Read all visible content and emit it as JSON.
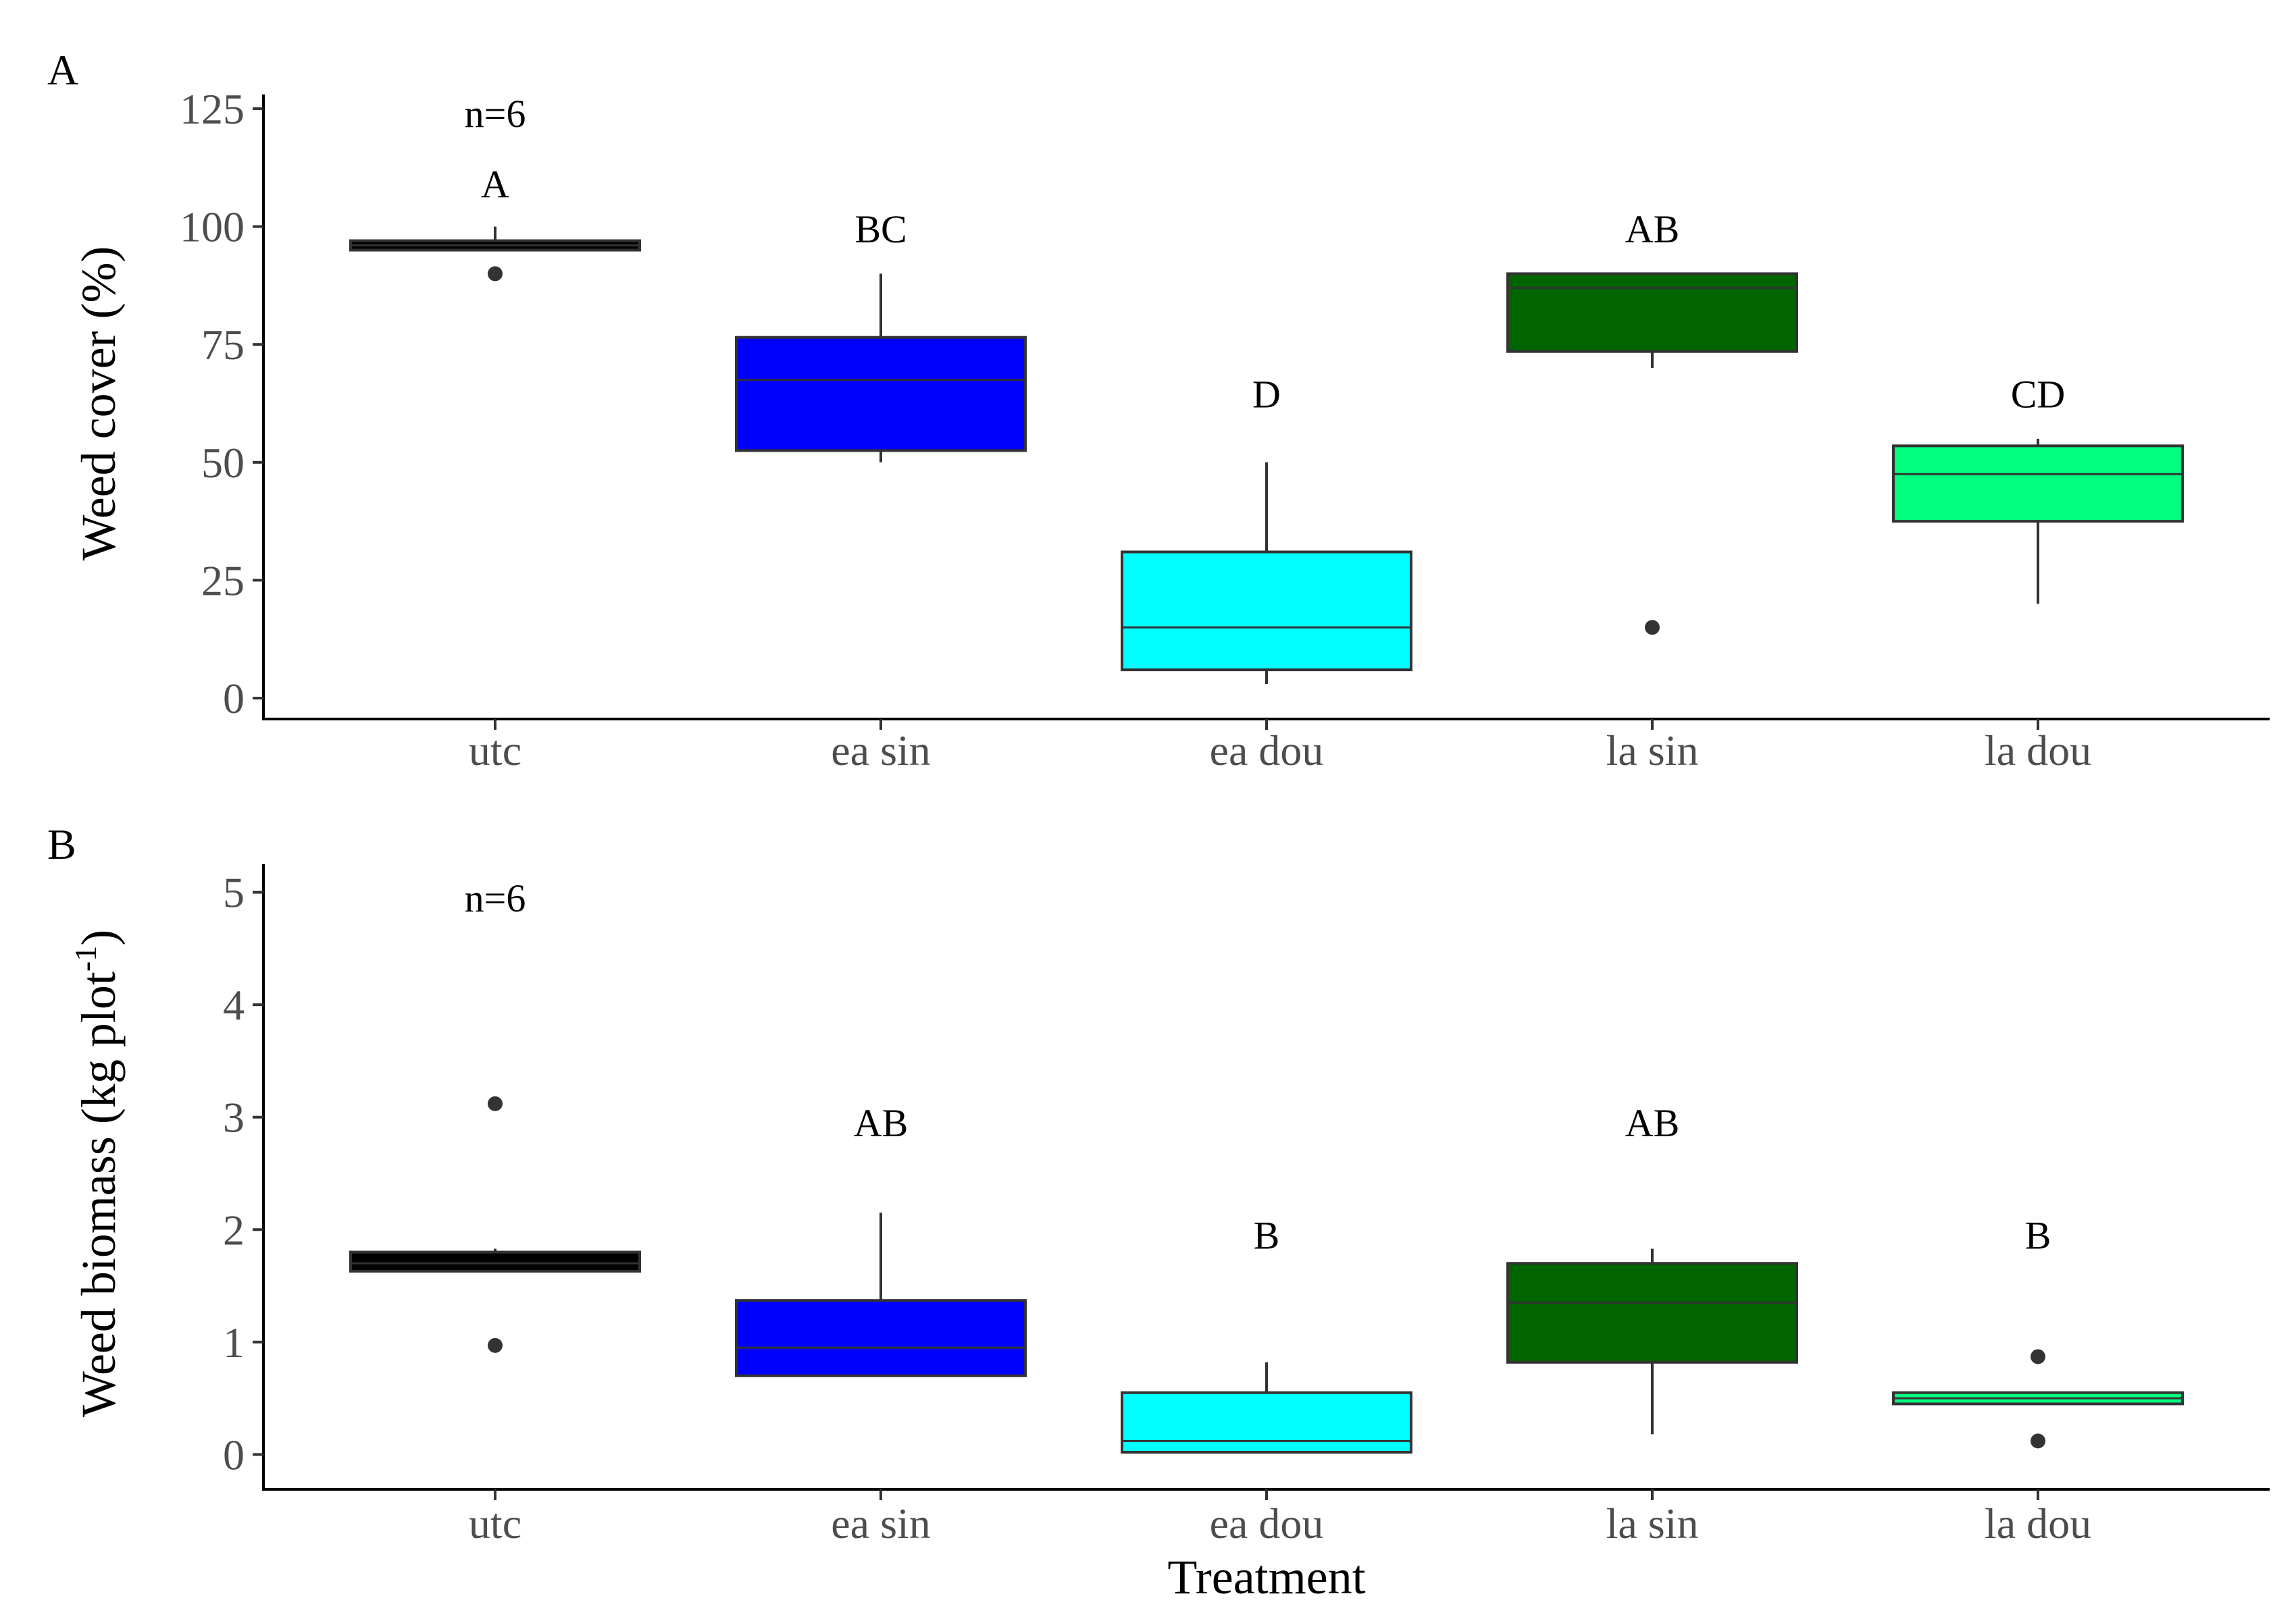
{
  "chart_data": [
    {
      "panel": "A",
      "type": "box",
      "xlabel": "",
      "ylabel": "Weed cover (%)",
      "ylim": [
        -3,
        128
      ],
      "yticks": [
        0,
        25,
        50,
        75,
        100,
        125
      ],
      "n_label": "n=6",
      "n_label_y": 124,
      "categories": [
        "utc",
        "ea sin",
        "ea dou",
        "la sin",
        "la dou"
      ],
      "boxes": [
        {
          "name": "utc",
          "color": "#000000",
          "min": 95,
          "q1": 95,
          "median": 96,
          "q3": 97,
          "max": 100,
          "outliers": [
            90
          ],
          "letter": "A",
          "letter_y": 109
        },
        {
          "name": "ea sin",
          "color": "#0000ff",
          "min": 50,
          "q1": 52.5,
          "median": 67.5,
          "q3": 76.5,
          "max": 90,
          "outliers": [],
          "letter": "BC",
          "letter_y": 99.5
        },
        {
          "name": "ea dou",
          "color": "#00ffff",
          "min": 3,
          "q1": 6,
          "median": 15,
          "q3": 31,
          "max": 50,
          "outliers": [],
          "letter": "D",
          "letter_y": 64.5
        },
        {
          "name": "la sin",
          "color": "#006400",
          "min": 70,
          "q1": 73.5,
          "median": 87,
          "q3": 90,
          "max": 90,
          "outliers": [
            15
          ],
          "letter": "AB",
          "letter_y": 99.5
        },
        {
          "name": "la dou",
          "color": "#00ff7f",
          "min": 20,
          "q1": 37.5,
          "median": 47.5,
          "q3": 53.5,
          "max": 55,
          "outliers": [],
          "letter": "CD",
          "letter_y": 64.5
        }
      ]
    },
    {
      "panel": "B",
      "type": "box",
      "xlabel": "Treatment",
      "ylabel_main": "Weed biomass  (kg plot",
      "ylabel_sup": "-1",
      "ylabel_end": ")",
      "ylim": [
        -0.25,
        5.25
      ],
      "yticks": [
        0,
        1,
        2,
        3,
        4,
        5
      ],
      "n_label": "n=6",
      "n_label_y": 4.95,
      "categories": [
        "utc",
        "ea sin",
        "ea dou",
        "la sin",
        "la dou"
      ],
      "boxes": [
        {
          "name": "utc",
          "color": "#000000",
          "min": 1.63,
          "q1": 1.63,
          "median": 1.7,
          "q3": 1.8,
          "max": 1.83,
          "outliers": [
            3.12,
            0.97
          ],
          "letter": "",
          "letter_y": 0
        },
        {
          "name": "ea sin",
          "color": "#0000ff",
          "min": 0.7,
          "q1": 0.7,
          "median": 0.95,
          "q3": 1.37,
          "max": 2.15,
          "outliers": [],
          "letter": "AB",
          "letter_y": 2.95
        },
        {
          "name": "ea dou",
          "color": "#00ffff",
          "min": 0.02,
          "q1": 0.02,
          "median": 0.12,
          "q3": 0.55,
          "max": 0.82,
          "outliers": [],
          "letter": "B",
          "letter_y": 1.95
        },
        {
          "name": "la sin",
          "color": "#006400",
          "min": 0.18,
          "q1": 0.82,
          "median": 1.35,
          "q3": 1.7,
          "max": 1.83,
          "outliers": [],
          "letter": "AB",
          "letter_y": 2.95
        },
        {
          "name": "la dou",
          "color": "#00ff7f",
          "min": 0.45,
          "q1": 0.45,
          "median": 0.5,
          "q3": 0.55,
          "max": 0.55,
          "outliers": [
            0.87,
            0.12
          ],
          "letter": "B",
          "letter_y": 1.95
        }
      ]
    }
  ]
}
